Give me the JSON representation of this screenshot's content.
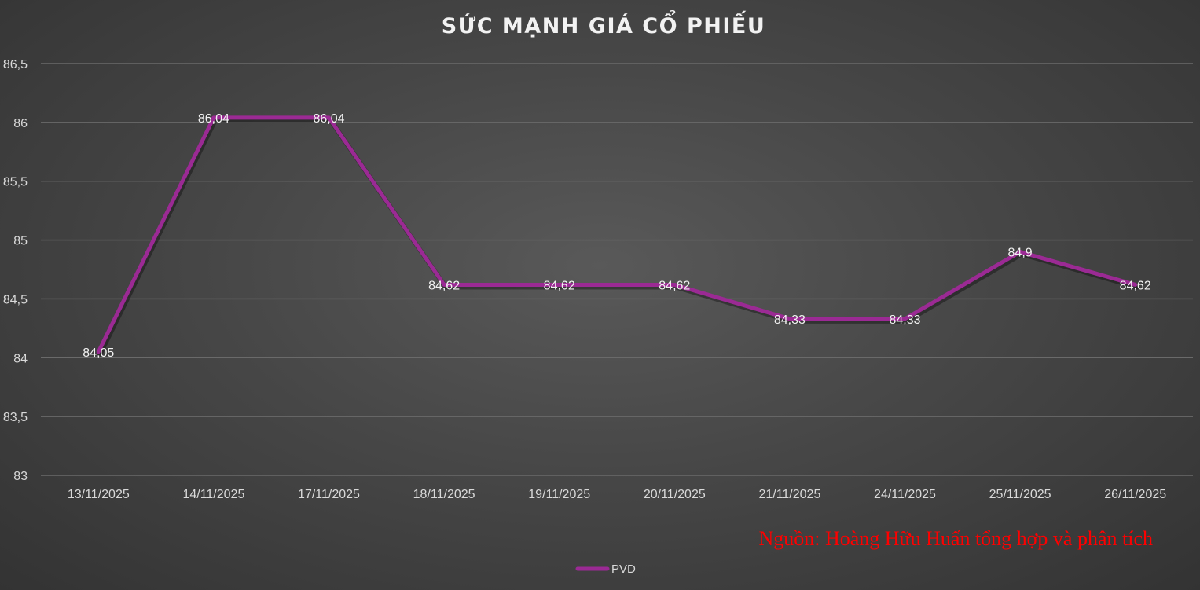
{
  "chart_data": {
    "type": "line",
    "title": "SỨC MẠNH GIÁ CỔ PHIẾU",
    "categories": [
      "13/11/2025",
      "14/11/2025",
      "17/11/2025",
      "18/11/2025",
      "19/11/2025",
      "20/11/2025",
      "21/11/2025",
      "24/11/2025",
      "25/11/2025",
      "26/11/2025"
    ],
    "series": [
      {
        "name": "PVD",
        "values": [
          84.05,
          86.04,
          86.04,
          84.62,
          84.62,
          84.62,
          84.33,
          84.33,
          84.9,
          84.62
        ],
        "labels": [
          "84,05",
          "86,04",
          "86,04",
          "84,62",
          "84,62",
          "84,62",
          "84,33",
          "84,33",
          "84,9",
          "84,62"
        ],
        "color": "#9b2a94"
      }
    ],
    "ylim": [
      83,
      86.5
    ],
    "yticks": [
      83,
      83.5,
      84,
      84.5,
      85,
      85.5,
      86,
      86.5
    ],
    "ytick_labels": [
      "83",
      "83,5",
      "84",
      "84,5",
      "85",
      "85,5",
      "86",
      "86,5"
    ],
    "grid": true,
    "legend_position": "bottom",
    "source_note": "Nguồn: Hoàng Hữu Huấn tổng hợp và phân tích"
  },
  "colors": {
    "line": "#9b2a94",
    "source_text": "#ff0000"
  }
}
